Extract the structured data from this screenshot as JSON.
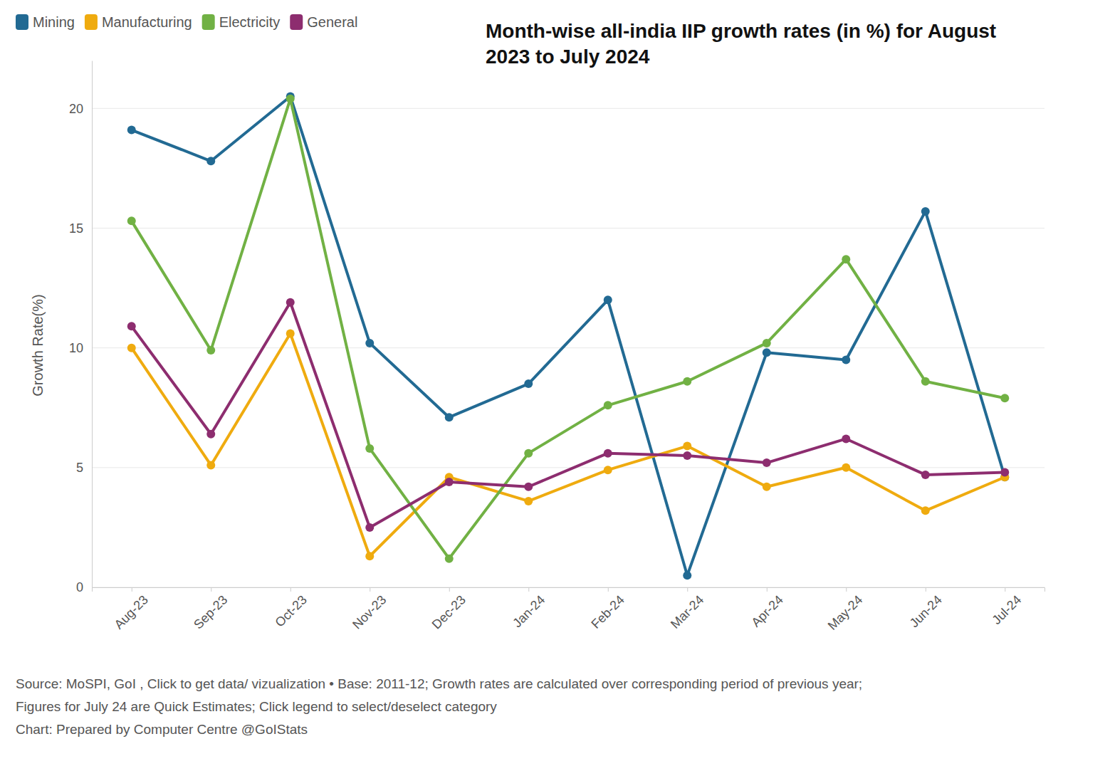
{
  "chart_data": {
    "type": "line",
    "title": "Month-wise all-india IIP growth rates (in %) for August 2023 to July 2024",
    "y_label": "Growth Rate(%)",
    "categories": [
      "Aug-23",
      "Sep-23",
      "Oct-23",
      "Nov-23",
      "Dec-23",
      "Jan-24",
      "Feb-24",
      "Mar-24",
      "Apr-24",
      "May-24",
      "Jun-24",
      "Jul-24"
    ],
    "series": [
      {
        "name": "Mining",
        "color": "#226a93",
        "values": [
          19.1,
          17.8,
          20.5,
          10.2,
          7.1,
          8.5,
          12.0,
          0.5,
          9.8,
          9.5,
          15.7,
          4.6
        ]
      },
      {
        "name": "Manufacturing",
        "color": "#efab0f",
        "values": [
          10.0,
          5.1,
          10.6,
          1.3,
          4.6,
          3.6,
          4.9,
          5.9,
          4.2,
          5.0,
          3.2,
          4.6
        ]
      },
      {
        "name": "Electricity",
        "color": "#71b144",
        "values": [
          15.3,
          9.9,
          20.4,
          5.8,
          1.2,
          5.6,
          7.6,
          8.6,
          10.2,
          13.7,
          8.6,
          7.9
        ]
      },
      {
        "name": "General",
        "color": "#8d2d6f",
        "values": [
          10.9,
          6.4,
          11.9,
          2.5,
          4.4,
          4.2,
          5.6,
          5.5,
          5.2,
          6.2,
          4.7,
          4.8
        ]
      }
    ],
    "ylim": [
      0,
      22
    ],
    "yticks": [
      0,
      5,
      10,
      15,
      20
    ],
    "grid": true,
    "legend": "top-left",
    "marker": "circle",
    "annotations": [
      "Source: MoSPI, GoI , Click to get data/ vizualization • Base: 2011-12; Growth rates are calculated over corresponding period of previous year;",
      "Figures for July 24 are Quick Estimates; Click legend to select/deselect category",
      "Chart: Prepared by Computer Centre @GoIStats"
    ]
  }
}
